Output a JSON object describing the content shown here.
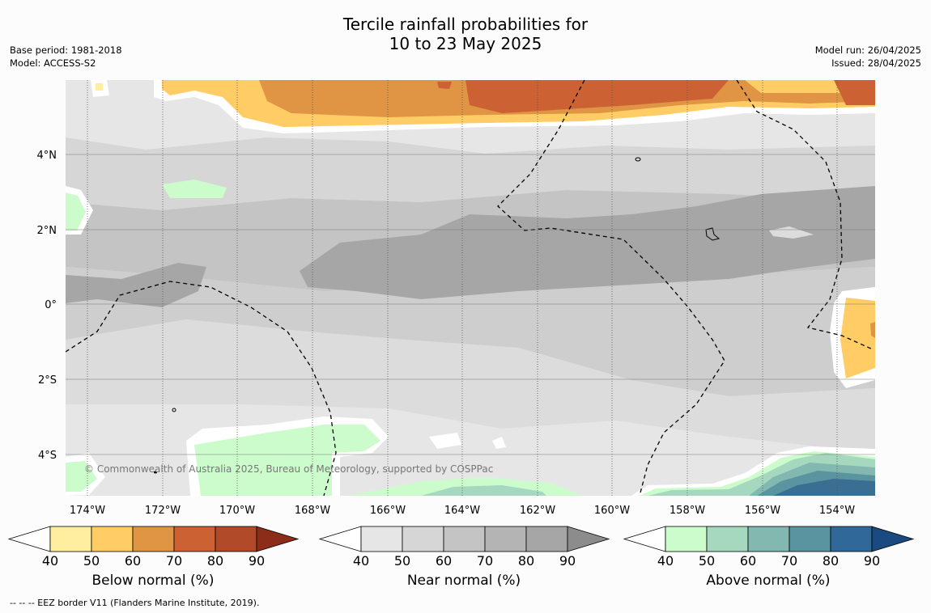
{
  "title": {
    "line1": "Tercile rainfall probabilities for",
    "line2": "10 to 23 May 2025"
  },
  "meta_left": {
    "base_period": "Base period: 1981-2018",
    "model": "Model: ACCESS-S2"
  },
  "meta_right": {
    "model_run": "Model run: 26/04/2025",
    "issued": "Issued: 28/04/2025"
  },
  "map": {
    "lat_labels": [
      "4°N",
      "2°N",
      "0°",
      "2°S",
      "4°S"
    ],
    "lon_labels": [
      "174°W",
      "172°W",
      "170°W",
      "168°W",
      "166°W",
      "164°W",
      "162°W",
      "160°W",
      "158°W",
      "156°W",
      "154°W"
    ],
    "copyright": "© Commonwealth of Australia 2025, Bureau of Meteorology, supported by COSPPac"
  },
  "colorbars": [
    {
      "label": "Below normal (%)",
      "ticks": [
        "40",
        "50",
        "60",
        "70",
        "80",
        "90"
      ],
      "colors": [
        "#ffffff",
        "#ffeea0",
        "#ffcc66",
        "#e09544",
        "#cc6233",
        "#b04a28",
        "#8c2d1a"
      ]
    },
    {
      "label": "Near normal (%)",
      "ticks": [
        "40",
        "50",
        "60",
        "70",
        "80",
        "90"
      ],
      "colors": [
        "#ffffff",
        "#e6e6e6",
        "#d6d6d6",
        "#c4c4c4",
        "#b4b4b4",
        "#a6a6a6",
        "#8c8c8c"
      ]
    },
    {
      "label": "Above normal (%)",
      "ticks": [
        "40",
        "50",
        "60",
        "70",
        "80",
        "90"
      ],
      "colors": [
        "#ffffff",
        "#ccfccc",
        "#a6d8bf",
        "#82b8b0",
        "#5a94a0",
        "#30689a",
        "#1a4a80"
      ]
    }
  ],
  "footnote": "--  --  -- EEZ border V11 (Flanders Marine Institute, 2019)."
}
